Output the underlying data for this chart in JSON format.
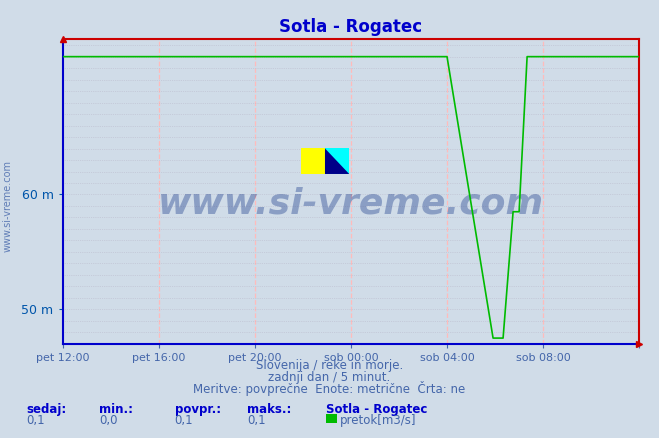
{
  "title": "Sotla - Rogatec",
  "title_color": "#0000cc",
  "bg_color": "#d0dce8",
  "plot_bg_color": "#d0dce8",
  "line_color": "#00bb00",
  "border_color_lb": "#0000cc",
  "border_color_rt": "#cc0000",
  "ylabel_color": "#0055aa",
  "ytick_labels": [
    "50 m",
    "60 m"
  ],
  "ytick_positions": [
    46.0,
    56.0
  ],
  "ylim": [
    43.0,
    69.5
  ],
  "xlim_min": 0,
  "xlim_max": 288,
  "xtick_positions": [
    0,
    48,
    96,
    144,
    192,
    240,
    288
  ],
  "xtick_labels": [
    "pet 12:00",
    "pet 16:00",
    "pet 20:00",
    "sob 00:00",
    "sob 04:00",
    "sob 08:00",
    ""
  ],
  "grid_h_color": "#bbbbcc",
  "grid_v_color": "#ffbbbb",
  "watermark_text": "www.si-vreme.com",
  "watermark_color": "#1a3a8a",
  "footer_line1": "Slovenija / reke in morje.",
  "footer_line2": "zadnji dan / 5 minut.",
  "footer_line3": "Meritve: povprečne  Enote: metrične  Črta: ne",
  "footer_color": "#4466aa",
  "stat_labels": [
    "sedaj:",
    "min.:",
    "povpr.:",
    "maks.:"
  ],
  "stat_values": [
    "0,1",
    "0,0",
    "0,1",
    "0,1"
  ],
  "legend_station": "Sotla - Rogatec",
  "legend_item": "pretok[m3/s]",
  "legend_color": "#00bb00",
  "high_value": 68.0,
  "low_value": 43.5,
  "mid_step1": 54.5,
  "mid_step2": 56.5,
  "drop_x": 192,
  "bottom_x1": 215,
  "bottom_x2": 220,
  "step1_x": 225,
  "step2_x": 228,
  "recover_x": 232,
  "end_x": 288
}
